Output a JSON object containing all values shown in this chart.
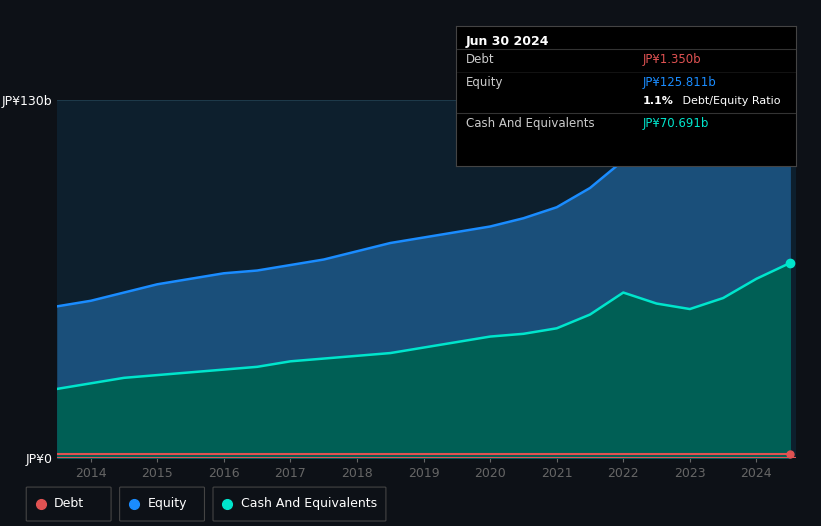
{
  "background_color": "#0d1117",
  "plot_bg_color": "#0d1f2d",
  "years": [
    2013.5,
    2014.0,
    2014.5,
    2015.0,
    2015.5,
    2016.0,
    2016.5,
    2017.0,
    2017.5,
    2018.0,
    2018.5,
    2019.0,
    2019.5,
    2020.0,
    2020.5,
    2021.0,
    2021.5,
    2022.0,
    2022.5,
    2023.0,
    2023.5,
    2024.0,
    2024.5
  ],
  "equity": [
    55,
    57,
    60,
    63,
    65,
    67,
    68,
    70,
    72,
    75,
    78,
    80,
    82,
    84,
    87,
    91,
    98,
    108,
    112,
    113,
    118,
    122,
    125.811
  ],
  "cash": [
    25,
    27,
    29,
    30,
    31,
    32,
    33,
    35,
    36,
    37,
    38,
    40,
    42,
    44,
    45,
    47,
    52,
    60,
    56,
    54,
    58,
    65,
    70.691
  ],
  "debt": [
    1.35,
    1.35,
    1.35,
    1.35,
    1.35,
    1.35,
    1.35,
    1.35,
    1.35,
    1.35,
    1.35,
    1.35,
    1.35,
    1.35,
    1.35,
    1.35,
    1.35,
    1.35,
    1.35,
    1.35,
    1.35,
    1.35,
    1.35
  ],
  "equity_color": "#1a8cff",
  "equity_fill": "#1a4f7a",
  "cash_color": "#00e5cc",
  "cash_fill": "#005f55",
  "debt_color": "#e05252",
  "ylim": [
    0,
    130
  ],
  "yticks": [
    0,
    130
  ],
  "ytick_labels": [
    "JP¥0",
    "JP¥130b"
  ],
  "xticks": [
    2014,
    2015,
    2016,
    2017,
    2018,
    2019,
    2020,
    2021,
    2022,
    2023,
    2024
  ],
  "grid_color": "#1e3a4a",
  "tooltip": {
    "date": "Jun 30 2024",
    "debt_label": "Debt",
    "debt_value": "JP¥1.350b",
    "debt_color": "#e05252",
    "equity_label": "Equity",
    "equity_value": "JP¥125.811b",
    "equity_color": "#1a8cff",
    "ratio_label": "1.1% Debt/Equity Ratio",
    "ratio_bold": "1.1%",
    "cash_label": "Cash And Equivalents",
    "cash_value": "JP¥70.691b",
    "cash_color": "#00e5cc",
    "bg_color": "#000000",
    "border_color": "#333333",
    "text_color": "#cccccc"
  },
  "legend_items": [
    {
      "label": "Debt",
      "color": "#e05252"
    },
    {
      "label": "Equity",
      "color": "#1a8cff"
    },
    {
      "label": "Cash And Equivalents",
      "color": "#00e5cc"
    }
  ]
}
